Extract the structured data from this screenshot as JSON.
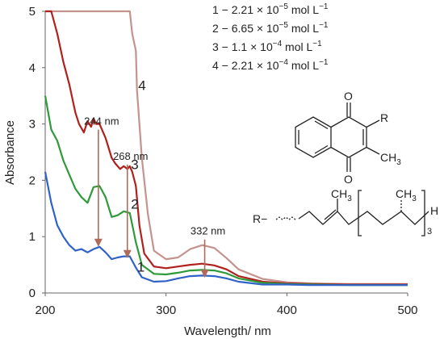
{
  "chart_data": {
    "type": "line",
    "title": "",
    "xlabel": "Wavelength/ nm",
    "ylabel": "Absorbance",
    "xlim": [
      200,
      500
    ],
    "ylim": [
      0,
      5
    ],
    "xticks": [
      "200",
      "300",
      "400",
      "500"
    ],
    "yticks": [
      "0",
      "1",
      "2",
      "3",
      "4",
      "5"
    ],
    "grid": false,
    "legend": {
      "placement": "top-right",
      "entries": [
        {
          "num": "1",
          "text": " − 2.21 × 10",
          "exp": "−5",
          "unit": " mol L",
          "uexp": "−1"
        },
        {
          "num": "2",
          "text": " − 6.65 × 10",
          "exp": "−5",
          "unit": " mol L",
          "uexp": "−1"
        },
        {
          "num": "3",
          "text": " − 1.1 × 10",
          "exp": "−4",
          "unit": " mol L",
          "uexp": "−1"
        },
        {
          "num": "4",
          "text": " − 2.21 × 10",
          "exp": "−4",
          "unit": " mol L",
          "uexp": "−1"
        }
      ]
    },
    "series": [
      {
        "name": "1",
        "color": "#2f62c8",
        "x": [
          200,
          205,
          210,
          215,
          220,
          225,
          230,
          235,
          240,
          245,
          250,
          255,
          260,
          265,
          270,
          275,
          280,
          290,
          300,
          310,
          320,
          330,
          340,
          350,
          360,
          380,
          400,
          420,
          450,
          480,
          500
        ],
        "y": [
          2.15,
          1.6,
          1.2,
          1.0,
          0.85,
          0.75,
          0.78,
          0.72,
          0.78,
          0.82,
          0.72,
          0.6,
          0.63,
          0.65,
          0.65,
          0.45,
          0.28,
          0.2,
          0.21,
          0.26,
          0.3,
          0.31,
          0.3,
          0.26,
          0.2,
          0.15,
          0.15,
          0.14,
          0.14,
          0.14,
          0.14
        ]
      },
      {
        "name": "2",
        "color": "#2f9a3a",
        "x": [
          200,
          205,
          210,
          215,
          220,
          225,
          230,
          235,
          240,
          245,
          250,
          255,
          260,
          265,
          270,
          275,
          280,
          290,
          300,
          310,
          320,
          330,
          340,
          350,
          360,
          380,
          400,
          420,
          450,
          480,
          500
        ],
        "y": [
          3.5,
          2.9,
          2.7,
          2.35,
          2.1,
          1.85,
          1.7,
          1.6,
          1.88,
          1.9,
          1.7,
          1.35,
          1.38,
          1.45,
          1.42,
          0.9,
          0.5,
          0.34,
          0.33,
          0.36,
          0.4,
          0.41,
          0.4,
          0.35,
          0.26,
          0.18,
          0.16,
          0.15,
          0.14,
          0.14,
          0.14
        ]
      },
      {
        "name": "3",
        "color": "#b0201c",
        "x": [
          200,
          205,
          210,
          215,
          220,
          225,
          228,
          232,
          235,
          238,
          240,
          242,
          245,
          250,
          255,
          258,
          262,
          265,
          268,
          270,
          272,
          275,
          278,
          282,
          290,
          300,
          310,
          320,
          330,
          340,
          350,
          360,
          380,
          400,
          420,
          450,
          480,
          500
        ],
        "y": [
          5.0,
          5.0,
          4.6,
          4.1,
          3.7,
          3.2,
          3.0,
          2.85,
          3.05,
          2.95,
          3.1,
          3.0,
          3.0,
          2.75,
          2.4,
          2.3,
          2.2,
          2.25,
          2.2,
          2.25,
          2.15,
          1.9,
          1.2,
          0.7,
          0.47,
          0.44,
          0.47,
          0.5,
          0.52,
          0.49,
          0.42,
          0.3,
          0.2,
          0.17,
          0.16,
          0.15,
          0.15,
          0.15
        ]
      },
      {
        "name": "4",
        "color": "#c4938e",
        "x": [
          200,
          205,
          210,
          215,
          220,
          225,
          230,
          235,
          240,
          245,
          250,
          255,
          260,
          265,
          270,
          272,
          275,
          276,
          280,
          285,
          290,
          300,
          310,
          320,
          330,
          340,
          350,
          360,
          380,
          400,
          420,
          450,
          480,
          500
        ],
        "y": [
          5.0,
          5.0,
          5.0,
          5.0,
          5.0,
          5.0,
          5.0,
          5.0,
          5.0,
          5.0,
          5.0,
          5.0,
          5.0,
          5.0,
          5.0,
          4.6,
          4.3,
          3.6,
          2.4,
          1.4,
          0.75,
          0.6,
          0.63,
          0.78,
          0.85,
          0.8,
          0.62,
          0.42,
          0.25,
          0.19,
          0.17,
          0.16,
          0.16,
          0.16
        ]
      }
    ],
    "annotations": [
      {
        "text": "244 nm",
        "x": 244,
        "arrow_from": 2.9,
        "arrow_to": 0.82
      },
      {
        "text": "268 nm",
        "x": 268,
        "arrow_from": 2.28,
        "arrow_to": 0.62
      },
      {
        "text": "332 nm",
        "x": 332,
        "arrow_from": 0.95,
        "arrow_to": 0.27
      }
    ],
    "curve_labels": [
      {
        "text": "4",
        "x": 277,
        "y": 3.6
      },
      {
        "text": "3",
        "x": 271,
        "y": 2.2
      },
      {
        "text": "2",
        "x": 271,
        "y": 1.5
      },
      {
        "text": "1",
        "x": 276,
        "y": 0.38
      }
    ]
  },
  "structure": {
    "r_top": "R",
    "ch3_ring": "CH",
    "ch3_sub": "3",
    "oxygen_top": "O",
    "oxygen_bottom": "O",
    "r_def": "R−",
    "chain_ch3_a": "CH",
    "chain_ch3_a_sub": "3",
    "chain_ch3_b": "CH",
    "chain_ch3_b_sub": "3",
    "chain_h": "H",
    "chain_n": "3"
  }
}
